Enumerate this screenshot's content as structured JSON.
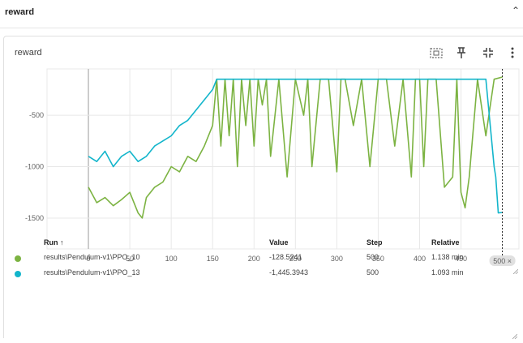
{
  "section": {
    "title": "reward"
  },
  "card": {
    "title": "reward"
  },
  "toolbar": {
    "fit": "fit-domain-icon",
    "pin": "pin-icon",
    "expand": "expand-icon",
    "more": "more-vert-icon"
  },
  "colors": {
    "ppo10": "#7cb342",
    "ppo13": "#12b5cb",
    "grid": "#e8e8e8",
    "axis": "#bdbdbd"
  },
  "chart_data": {
    "type": "line",
    "title": "reward",
    "xlabel": "",
    "ylabel": "",
    "xlim": [
      -50,
      520
    ],
    "ylim": [
      -1800,
      -50
    ],
    "x_ticks": [
      0,
      50,
      100,
      150,
      200,
      250,
      300,
      350,
      400,
      450
    ],
    "y_ticks": [
      -500,
      -1000,
      -1500
    ],
    "x_tick_labels": [
      "0",
      "50",
      "100",
      "150",
      "200",
      "250",
      "300",
      "350",
      "400",
      "450"
    ],
    "y_tick_labels": [
      "-500",
      "-1000",
      "-1500"
    ],
    "hover_step_label": "500 ×",
    "hover_step": 500,
    "grid": true,
    "series": [
      {
        "name": "results\\Pendulum-v1\\PPO_10",
        "x": [
          0,
          10,
          20,
          30,
          40,
          50,
          60,
          65,
          70,
          80,
          90,
          100,
          110,
          120,
          130,
          140,
          150,
          155,
          160,
          165,
          170,
          175,
          180,
          185,
          190,
          195,
          200,
          205,
          210,
          215,
          220,
          230,
          240,
          250,
          260,
          265,
          270,
          280,
          290,
          300,
          305,
          310,
          320,
          330,
          340,
          350,
          360,
          370,
          380,
          390,
          395,
          400,
          405,
          410,
          420,
          430,
          440,
          445,
          450,
          455,
          460,
          470,
          480,
          490,
          500
        ],
        "values": [
          -1200,
          -1350,
          -1300,
          -1380,
          -1320,
          -1250,
          -1450,
          -1500,
          -1300,
          -1200,
          -1150,
          -1000,
          -1050,
          -900,
          -950,
          -800,
          -600,
          -150,
          -800,
          -150,
          -700,
          -150,
          -1000,
          -150,
          -600,
          -150,
          -800,
          -150,
          -400,
          -150,
          -900,
          -150,
          -1100,
          -150,
          -500,
          -150,
          -1000,
          -150,
          -150,
          -1050,
          -150,
          -150,
          -600,
          -150,
          -1000,
          -150,
          -150,
          -800,
          -150,
          -1100,
          -150,
          -150,
          -1000,
          -150,
          -150,
          -1200,
          -1100,
          -150,
          -1250,
          -1400,
          -1100,
          -150,
          -700,
          -150,
          -128.5241
        ]
      },
      {
        "name": "results\\Pendulum-v1\\PPO_13",
        "x": [
          0,
          10,
          20,
          30,
          40,
          50,
          60,
          70,
          80,
          90,
          100,
          110,
          120,
          130,
          140,
          150,
          155,
          160,
          170,
          180,
          190,
          200,
          250,
          300,
          350,
          400,
          450,
          480,
          490,
          492,
          495,
          500
        ],
        "values": [
          -900,
          -950,
          -850,
          -1000,
          -900,
          -850,
          -950,
          -900,
          -800,
          -750,
          -700,
          -600,
          -550,
          -450,
          -350,
          -250,
          -150,
          -150,
          -150,
          -150,
          -150,
          -150,
          -150,
          -150,
          -150,
          -150,
          -150,
          -150,
          -1000,
          -1100,
          -1450,
          -1445.3943
        ]
      }
    ]
  },
  "table": {
    "headers": {
      "run": "Run ↑",
      "value": "Value",
      "step": "Step",
      "relative": "Relative"
    },
    "rows": [
      {
        "run": "results\\Pendulum-v1\\PPO_10",
        "value": "-128.5241",
        "step": "500",
        "relative": "1.138 min",
        "color": "#7cb342"
      },
      {
        "run": "results\\Pendulum-v1\\PPO_13",
        "value": "-1,445.3943",
        "step": "500",
        "relative": "1.093 min",
        "color": "#12b5cb"
      }
    ]
  }
}
